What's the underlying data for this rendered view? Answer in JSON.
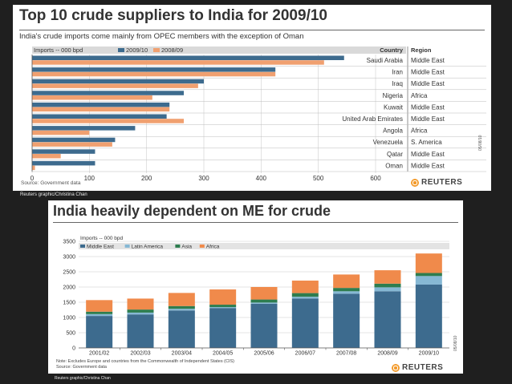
{
  "top": {
    "title": "Top 10 crude suppliers to India for 2009/10",
    "subtitle": "India's crude imports come mainly from OPEC members with the exception of Oman",
    "source": "Source: Government data",
    "brand": "REUTERS",
    "side_code": "05/08/10",
    "credit": "Reuters graphic/Christina Chan",
    "col_country": "Country",
    "col_region": "Region"
  },
  "bottom": {
    "title": "India heavily dependent on ME for crude",
    "note": "Note: Excludes Europe and countries from the Commonwealth of Independent States (CIS)",
    "source": "Source: Government data",
    "brand": "REUTERS",
    "side_code": "05/08/10",
    "credit": "Reuters graphic/Christina Chan"
  },
  "colors": {
    "blue": "#3d6b8e",
    "orange": "#f0a070",
    "light_blue": "#86b8d4",
    "green": "#2e7d4f",
    "red_orange": "#f08a4b"
  },
  "chart_data": [
    {
      "type": "bar",
      "orientation": "horizontal",
      "title": "Top 10 crude suppliers to India for 2009/10",
      "axis_title": "Imports -- 000 bpd",
      "categories": [
        "Saudi Arabia",
        "Iran",
        "Iraq",
        "Nigeria",
        "Kuwait",
        "United Arab Emirates",
        "Angola",
        "Venezuela",
        "Qatar",
        "Oman"
      ],
      "regions": [
        "Middle East",
        "Middle East",
        "Middle East",
        "Africa",
        "Middle East",
        "Middle East",
        "Africa",
        "S. America",
        "Middle East",
        "Middle East"
      ],
      "series": [
        {
          "name": "2009/10",
          "values": [
            545,
            425,
            300,
            265,
            240,
            235,
            180,
            145,
            110,
            110
          ]
        },
        {
          "name": "2008/09",
          "values": [
            510,
            425,
            290,
            210,
            240,
            265,
            100,
            140,
            50,
            5
          ]
        }
      ],
      "xlim": [
        0,
        600
      ],
      "xticks": [
        0,
        100,
        200,
        300,
        400,
        500,
        600
      ],
      "grid": true,
      "legend": "top"
    },
    {
      "type": "bar",
      "stacked": true,
      "title": "India heavily dependent on ME for crude",
      "axis_title": "Imports -- 000 bpd",
      "categories": [
        "2001/02",
        "2002/03",
        "2003/04",
        "2004/05",
        "2005/06",
        "2006/07",
        "2007/08",
        "2008/09",
        "2009/10"
      ],
      "series": [
        {
          "name": "Middle East",
          "values": [
            1050,
            1100,
            1230,
            1310,
            1450,
            1620,
            1780,
            1860,
            2080
          ]
        },
        {
          "name": "Latin America",
          "values": [
            60,
            60,
            55,
            30,
            40,
            60,
            80,
            130,
            280
          ]
        },
        {
          "name": "Asia",
          "values": [
            80,
            100,
            90,
            80,
            100,
            120,
            110,
            120,
            100
          ]
        },
        {
          "name": "Africa",
          "values": [
            380,
            360,
            430,
            500,
            410,
            410,
            440,
            440,
            640
          ]
        }
      ],
      "ylim": [
        0,
        3500
      ],
      "yticks": [
        0,
        500,
        1000,
        1500,
        2000,
        2500,
        3000,
        3500
      ],
      "grid": true,
      "legend": "top-left"
    }
  ]
}
